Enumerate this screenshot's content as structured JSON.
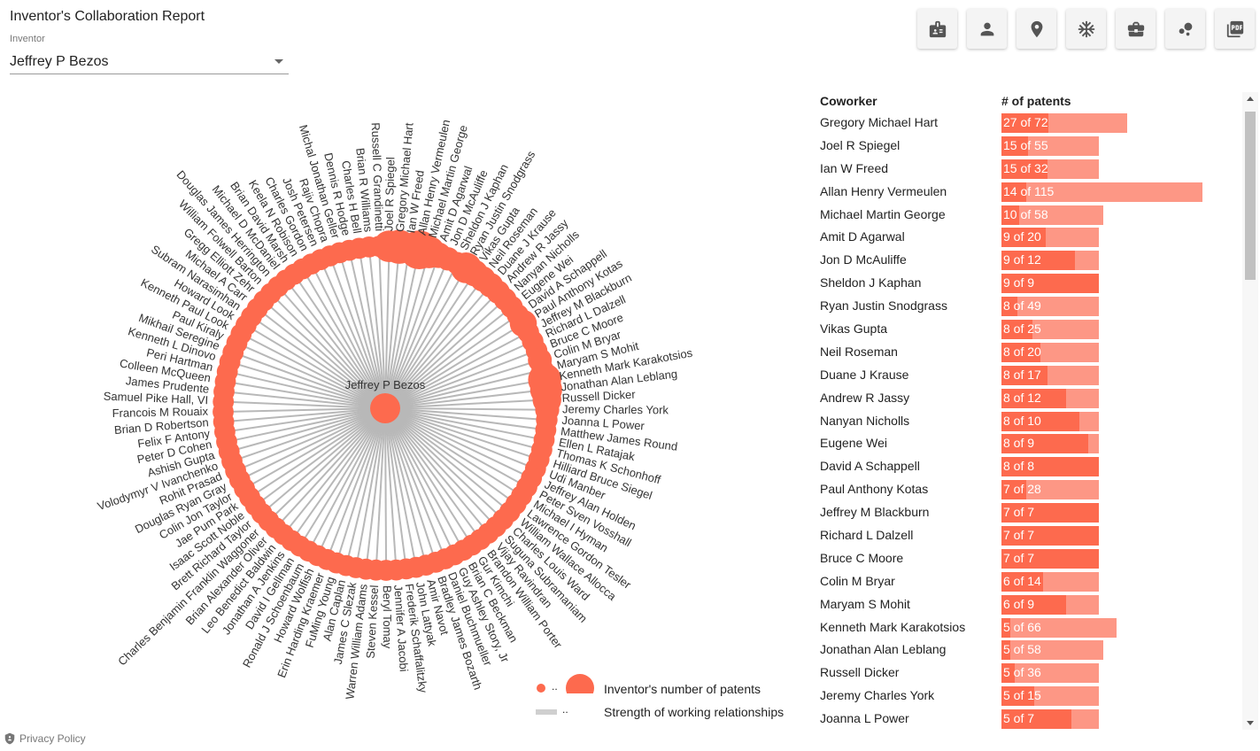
{
  "header": {
    "title": "Inventor's Collaboration Report",
    "inventor_label": "Inventor",
    "inventor_value": "Jeffrey P Bezos"
  },
  "toolbar": {
    "buttons": [
      {
        "icon": "badge-icon"
      },
      {
        "icon": "person-icon"
      },
      {
        "icon": "location-pin-icon"
      },
      {
        "icon": "snowflake-icon"
      },
      {
        "icon": "briefcase-icon"
      },
      {
        "icon": "bubbles-icon"
      },
      {
        "icon": "pdf-icon"
      }
    ]
  },
  "chord": {
    "center_label": "Jeffrey P Bezos",
    "coworkers": [
      "Gregory Michael Hart",
      "Ian W Freed",
      "Allan Henry Vermeulen",
      "Michael Martin George",
      "Amit D Agarwal",
      "Jon D McAuliffe",
      "Sheldon J Kaphan",
      "Ryan Justin Snodgrass",
      "Vikas Gupta",
      "Neil Roseman",
      "Duane J Krause",
      "Andrew R Jassy",
      "Nanyan Nicholls",
      "Eugene Wei",
      "David A Schappell",
      "Paul Anthony Kotas",
      "Jeffrey M Blackburn",
      "Richard L Dalzell",
      "Bruce C Moore",
      "Colin M Bryar",
      "Maryam S Mohit",
      "Kenneth Mark Karakotsios",
      "Jonathan Alan Leblang",
      "Russell Dicker",
      "Jeremy Charles York",
      "Joanna L Power",
      "Matthew James Round",
      "Ellen L Ratajak",
      "Thomas K Schonhoff",
      "Hilliard Bruce Siegel",
      "Udi Manber",
      "Jeffrey Alan Holden",
      "Peter Sven Vosshall",
      "Michael I Hyman",
      "Lawrence Gordon Tesler",
      "William Wallace Allocca",
      "Charles Louis Ward",
      "Suguna Subramaniam",
      "Vijay Ravindran",
      "Brandon William Porter",
      "Gur Kimchi",
      "Brian C Beckman",
      "Guy Ashley Story, Jr",
      "Daniel Buchmueller",
      "Bradley James Bozarth",
      "Amir Navot",
      "John Lattyak",
      "Frederik Schaffalitzky",
      "Jennifer A Jacobi",
      "Beryl Tomay",
      "Steven Kessel",
      "Warren William Adams",
      "James C Slezak",
      "Alan Caplan",
      "FuMing Young",
      "Erin Harding Kraemer",
      "Howard Wolfish",
      "Ronald J Schoenbaum",
      "David I Gellman",
      "Jonathan A Jenkins",
      "Leo Benedict Baldwin",
      "Brian Alexander Oliver",
      "Charles Benjamin Franklin Waggoner",
      "Brett Richard Taylor",
      "Isaac Scott Noble",
      "Jae Pum Park",
      "Colin Jon Taylor",
      "Douglas Ryan Gray",
      "Rohit Prasad",
      "Volodymyr V Ivanchenko",
      "Ashish Gupta",
      "Peter D Cohen",
      "Felix F Antony",
      "Brian D Robertson",
      "Francois M Rouaix",
      "Samuel Pike Hall, VI",
      "James Prudente",
      "Colleen McQueen",
      "Peri Hartman",
      "Kenneth L Dinovo",
      "Mikhail Seregine",
      "Paul Kiraly",
      "Kenneth Paul Look",
      "Howard Look",
      "Subram Narasimhan",
      "Michael A Carr",
      "Gregg Elliott Zehr",
      "William Folwell Barton",
      "Douglas James Herrington",
      "Michael D McDaniel",
      "Brian David Marsh",
      "Keela N Robison",
      "Charles Gordon",
      "Josh Petersen",
      "Rajiv Chopra",
      "Michal Jonathan Geller",
      "Dennis R Hodge",
      "Charles H Bell",
      "Brian R Williams",
      "Russell C Grandinetti",
      "Joel R Spiegel"
    ]
  },
  "legend": {
    "dots_text": "..",
    "nodes_label": "Inventor's number of patents",
    "links_text": "..",
    "links_label": "Strength of working relationships"
  },
  "table": {
    "col_coworker": "Coworker",
    "col_patents": "# of patents",
    "rows": [
      {
        "name": "Gregory Michael Hart",
        "shared": 27,
        "total": 72,
        "label": "27 of 72"
      },
      {
        "name": "Joel R Spiegel",
        "shared": 15,
        "total": 55,
        "label": "15 of 55"
      },
      {
        "name": "Ian W Freed",
        "shared": 15,
        "total": 32,
        "label": "15 of 32"
      },
      {
        "name": "Allan Henry Vermeulen",
        "shared": 14,
        "total": 115,
        "label": "14 of 115"
      },
      {
        "name": "Michael Martin George",
        "shared": 10,
        "total": 58,
        "label": "10 of 58"
      },
      {
        "name": "Amit D Agarwal",
        "shared": 9,
        "total": 20,
        "label": "9 of 20"
      },
      {
        "name": "Jon D McAuliffe",
        "shared": 9,
        "total": 12,
        "label": "9 of 12"
      },
      {
        "name": "Sheldon J Kaphan",
        "shared": 9,
        "total": 9,
        "label": "9 of 9"
      },
      {
        "name": "Ryan Justin Snodgrass",
        "shared": 8,
        "total": 49,
        "label": "8 of 49"
      },
      {
        "name": "Vikas Gupta",
        "shared": 8,
        "total": 25,
        "label": "8 of 25"
      },
      {
        "name": "Neil Roseman",
        "shared": 8,
        "total": 20,
        "label": "8 of 20"
      },
      {
        "name": "Duane J Krause",
        "shared": 8,
        "total": 17,
        "label": "8 of 17"
      },
      {
        "name": "Andrew R Jassy",
        "shared": 8,
        "total": 12,
        "label": "8 of 12"
      },
      {
        "name": "Nanyan Nicholls",
        "shared": 8,
        "total": 10,
        "label": "8 of 10"
      },
      {
        "name": "Eugene Wei",
        "shared": 8,
        "total": 9,
        "label": "8 of 9"
      },
      {
        "name": "David A Schappell",
        "shared": 8,
        "total": 8,
        "label": "8 of 8"
      },
      {
        "name": "Paul Anthony Kotas",
        "shared": 7,
        "total": 28,
        "label": "7 of 28"
      },
      {
        "name": "Jeffrey M Blackburn",
        "shared": 7,
        "total": 7,
        "label": "7 of 7"
      },
      {
        "name": "Richard L Dalzell",
        "shared": 7,
        "total": 7,
        "label": "7 of 7"
      },
      {
        "name": "Bruce C Moore",
        "shared": 7,
        "total": 7,
        "label": "7 of 7"
      },
      {
        "name": "Colin M Bryar",
        "shared": 6,
        "total": 14,
        "label": "6 of 14"
      },
      {
        "name": "Maryam S Mohit",
        "shared": 6,
        "total": 9,
        "label": "6 of 9"
      },
      {
        "name": "Kenneth Mark Karakotsios",
        "shared": 5,
        "total": 66,
        "label": "5 of 66"
      },
      {
        "name": "Jonathan Alan Leblang",
        "shared": 5,
        "total": 58,
        "label": "5 of 58"
      },
      {
        "name": "Russell Dicker",
        "shared": 5,
        "total": 36,
        "label": "5 of 36"
      },
      {
        "name": "Jeremy Charles York",
        "shared": 5,
        "total": 15,
        "label": "5 of 15"
      },
      {
        "name": "Joanna L Power",
        "shared": 5,
        "total": 7,
        "label": "5 of 7"
      }
    ]
  },
  "footer": {
    "privacy": "Privacy Policy"
  },
  "colors": {
    "accent": "#fd6a4e",
    "accent_light": "#fd9785",
    "links": "#b8b8b8"
  }
}
